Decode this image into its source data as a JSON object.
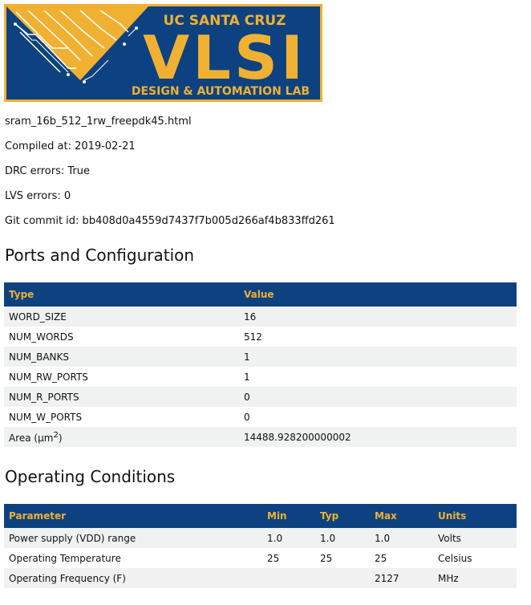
{
  "logo": {
    "top_text": "UC SANTA CRUZ",
    "main_text": "VLSI",
    "bottom_text": "DESIGN & AUTOMATION LAB",
    "colors": {
      "blue": "#0d4280",
      "gold": "#f0b132"
    }
  },
  "info": {
    "filename": "sram_16b_512_1rw_freepdk45.html",
    "compiled": "Compiled at: 2019-02-21",
    "drc": "DRC errors: True",
    "lvs": "LVS errors: 0",
    "git": "Git commit id: bb408d0a4559d7437f7b005d266af4b833ffd261"
  },
  "ports": {
    "title": "Ports and Configuration",
    "headers": [
      "Type",
      "Value"
    ],
    "rows": [
      [
        "WORD_SIZE",
        "16"
      ],
      [
        "NUM_WORDS",
        "512"
      ],
      [
        "NUM_BANKS",
        "1"
      ],
      [
        "NUM_RW_PORTS",
        "1"
      ],
      [
        "NUM_R_PORTS",
        "0"
      ],
      [
        "NUM_W_PORTS",
        "0"
      ],
      [
        "Area (µm",
        "14488.928200000002"
      ]
    ],
    "area_sup": "2",
    "area_close": ")"
  },
  "conditions": {
    "title": "Operating Conditions",
    "headers": [
      "Parameter",
      "Min",
      "Typ",
      "Max",
      "Units"
    ],
    "rows": [
      [
        "Power supply (VDD) range",
        "1.0",
        "1.0",
        "1.0",
        "Volts"
      ],
      [
        "Operating Temperature",
        "25",
        "25",
        "25",
        "Celsius"
      ],
      [
        "Operating Frequency (F)",
        "",
        "",
        "2127",
        "MHz"
      ]
    ]
  }
}
